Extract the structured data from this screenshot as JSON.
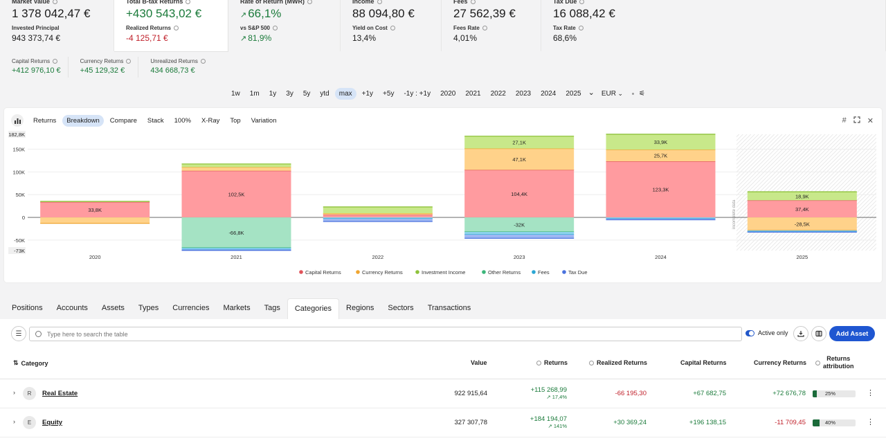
{
  "metrics": [
    {
      "label": "Market Value",
      "value": "1 378 042,47 €",
      "value_class": "",
      "sublabel": "Invested Principal",
      "subvalue": "943 373,74 €",
      "subvalue_class": ""
    },
    {
      "label": "Total B-tax Returns",
      "value": "+430 543,02 €",
      "value_class": "pos",
      "sublabel": "Realized Returns",
      "subvalue": "-4 125,71 €",
      "subvalue_class": "neg"
    },
    {
      "label": "Rate of Return (MWR)",
      "value": "66,1%",
      "value_class": "pos",
      "sublabel": "vs S&P 500",
      "subvalue": "81,9%",
      "subvalue_class": "pos"
    },
    {
      "label": "Income",
      "value": "88 094,80 €",
      "value_class": "",
      "sublabel": "Yield on Cost",
      "subvalue": "13,4%",
      "subvalue_class": ""
    },
    {
      "label": "Fees",
      "value": "27 562,39 €",
      "value_class": "",
      "sublabel": "Fees Rate",
      "subvalue": "4,01%",
      "subvalue_class": ""
    },
    {
      "label": "Tax Due",
      "value": "16 088,42 €",
      "value_class": "",
      "sublabel": "Tax Rate",
      "subvalue": "68,6%",
      "subvalue_class": ""
    }
  ],
  "returns_breakdown": [
    {
      "label": "Capital Returns",
      "value": "+412 976,10 €"
    },
    {
      "label": "Currency Returns",
      "value": "+45 129,32 €"
    },
    {
      "label": "Unrealized Returns",
      "value": "434 668,73 €"
    }
  ],
  "periods": [
    "1w",
    "1m",
    "1y",
    "3y",
    "5y",
    "ytd",
    "max",
    "+1y",
    "+5y",
    "-1y : +1y",
    "2020",
    "2021",
    "2022",
    "2023",
    "2024",
    "2025"
  ],
  "selected_period": "max",
  "currency": "EUR",
  "chart_tabs": [
    "Returns",
    "Breakdown",
    "Compare",
    "Stack",
    "100%",
    "X-Ray",
    "Top",
    "Variation"
  ],
  "selected_chart_tab": "Breakdown",
  "chart_data": {
    "type": "bar",
    "stacked": true,
    "categories": [
      "2020",
      "2021",
      "2022",
      "2023",
      "2024",
      "2025"
    ],
    "y_ticks": [
      "150K",
      "100K",
      "50K",
      "0",
      "-50K"
    ],
    "y_top_label": "182,8K",
    "y_bottom_label": "-73K",
    "ylim": [
      -73000,
      182800
    ],
    "incomplete_label": "incomplete data",
    "series": [
      {
        "name": "Capital Returns",
        "color": "#ff9b9f",
        "stroke": "#e0535a",
        "values": [
          33800,
          102500,
          6000,
          104400,
          123300,
          37400
        ],
        "labels": [
          "33,8K",
          "102,5K",
          "",
          "104,4K",
          "123,3K",
          "37,4K"
        ]
      },
      {
        "name": "Currency Returns",
        "color": "#ffd28a",
        "stroke": "#f0a530",
        "values": [
          -13000,
          8000,
          3000,
          47100,
          25700,
          -28500
        ],
        "labels": [
          "",
          "",
          "",
          "47,1K",
          "25,7K",
          "-28,5K"
        ]
      },
      {
        "name": "Investment Income",
        "color": "#c8e88a",
        "stroke": "#8ec23a",
        "values": [
          1500,
          7000,
          14000,
          27100,
          33900,
          18900
        ],
        "labels": [
          "",
          "",
          "",
          "27,1K",
          "33,9K",
          "18,9K"
        ]
      },
      {
        "name": "Other Returns",
        "color": "#a5e3c4",
        "stroke": "#3cb67a",
        "values": [
          0,
          -66800,
          0,
          -32000,
          0,
          0
        ],
        "labels": [
          "",
          "-66,8K",
          "",
          "-32K",
          "",
          ""
        ]
      },
      {
        "name": "Fees",
        "color": "#8fd3ee",
        "stroke": "#2aa6d4",
        "values": [
          0,
          -3500,
          -3000,
          -6000,
          -2500,
          -2500
        ],
        "labels": [
          "",
          "",
          "",
          "",
          "",
          ""
        ]
      },
      {
        "name": "Tax Due",
        "color": "#9fb8f2",
        "stroke": "#4a72de",
        "values": [
          0,
          -2200,
          -6000,
          -8000,
          -2800,
          -1500
        ],
        "labels": [
          "",
          "",
          "",
          "",
          "",
          ""
        ]
      }
    ]
  },
  "section_tabs": [
    "Positions",
    "Accounts",
    "Assets",
    "Types",
    "Currencies",
    "Markets",
    "Tags",
    "Categories",
    "Regions",
    "Sectors",
    "Transactions"
  ],
  "selected_section_tab": "Categories",
  "toolbar": {
    "search_placeholder": "Type here to search the table",
    "active_only_label": "Active only",
    "add_asset_label": "Add Asset"
  },
  "table": {
    "headers": {
      "category": "Category",
      "value": "Value",
      "returns": "Returns",
      "realized": "Realized Returns",
      "capital": "Capital Returns",
      "currency": "Currency Returns",
      "attribution_1": "Returns",
      "attribution_2": "attribution"
    },
    "rows": [
      {
        "initial": "R",
        "name": "Real Estate",
        "value": "922 915,64",
        "returns": "+115 268,99",
        "returns_pct": "17,4%",
        "realized": "-66 195,30",
        "realized_class": "neg",
        "capital": "+67 682,75",
        "capital_class": "pos",
        "currency": "+72 676,78",
        "currency_class": "pos",
        "attribution": 25,
        "attribution_label": "25%"
      },
      {
        "initial": "E",
        "name": "Equity",
        "value": "327 307,78",
        "returns": "+184 194,07",
        "returns_pct": "141%",
        "realized": "+30 369,24",
        "realized_class": "pos",
        "capital": "+196 138,15",
        "capital_class": "pos",
        "currency": "-11 709,45",
        "currency_class": "neg",
        "attribution": 40,
        "attribution_label": "40%"
      }
    ]
  }
}
